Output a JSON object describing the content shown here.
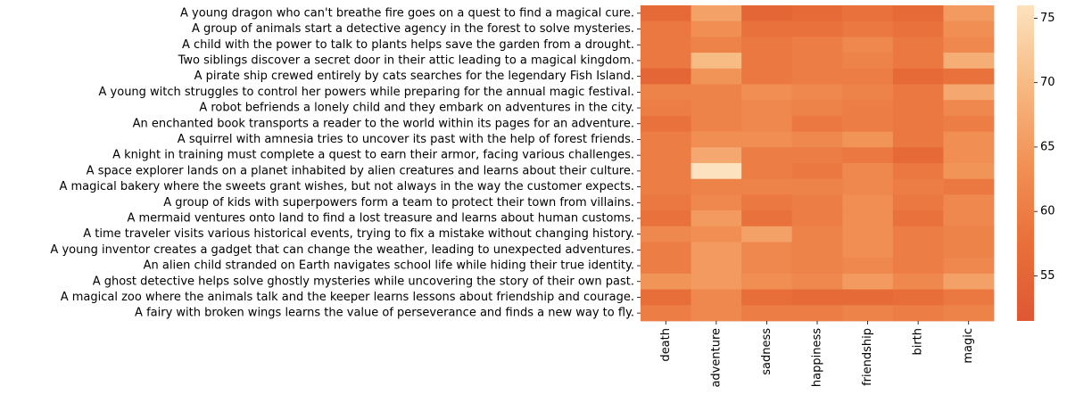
{
  "chart_data": {
    "type": "heatmap",
    "title": "",
    "xlabel": "",
    "ylabel": "",
    "columns": [
      "death",
      "adventure",
      "sadness",
      "happiness",
      "friendship",
      "birth",
      "magic"
    ],
    "rows": [
      "A young dragon who can't breathe fire goes on a quest to find a magical cure.",
      "A group of animals start a detective agency in the forest to solve mysteries.",
      "A child with the power to talk to plants helps save the garden from a drought.",
      "Two siblings discover a secret door in their attic leading to a magical kingdom.",
      "A pirate ship crewed entirely by cats searches for the legendary Fish Island.",
      "A young witch struggles to control her powers while preparing for the annual magic festival.",
      "A robot befriends a lonely child and they embark on adventures in the city.",
      "An enchanted book transports a reader to the world within its pages for an adventure.",
      "A squirrel with amnesia tries to uncover its past with the help of forest friends.",
      "A knight in training must complete a quest to earn their armor, facing various challenges.",
      "A space explorer lands on a planet inhabited by alien creatures and learns about their culture.",
      "A magical bakery where the sweets grant wishes, but not always in the way the customer expects.",
      "A group of kids with superpowers form a team to protect their town from villains.",
      "A mermaid ventures onto land to find a lost treasure and learns about human customs.",
      "A time traveler visits various historical events, trying to fix a mistake without changing history.",
      "A young inventor creates a gadget that can change the weather, leading to unexpected adventures.",
      "An alien child stranded on Earth navigates school life while hiding their true identity.",
      "A ghost detective helps solve ghostly mysteries while uncovering the story of their own past.",
      "A magical zoo where the animals talk and the keeper learns lessons about friendship and courage.",
      "A fairy with broken wings learns the value of perseverance and finds a new way to fly."
    ],
    "values": [
      [
        56,
        66,
        55,
        56,
        58,
        56,
        65
      ],
      [
        59,
        63,
        58,
        58,
        59,
        58,
        63
      ],
      [
        59,
        61,
        59,
        60,
        62,
        59,
        62
      ],
      [
        59,
        70,
        59,
        60,
        61,
        59,
        68
      ],
      [
        55,
        64,
        59,
        60,
        60,
        56,
        58
      ],
      [
        61,
        61,
        63,
        62,
        61,
        59,
        67
      ],
      [
        60,
        61,
        62,
        61,
        60,
        59,
        62
      ],
      [
        58,
        61,
        62,
        59,
        60,
        59,
        60
      ],
      [
        60,
        63,
        63,
        62,
        64,
        59,
        63
      ],
      [
        60,
        67,
        60,
        60,
        59,
        56,
        63
      ],
      [
        60,
        76,
        60,
        59,
        62,
        59,
        64
      ],
      [
        60,
        61,
        61,
        61,
        62,
        60,
        59
      ],
      [
        59,
        62,
        59,
        60,
        63,
        59,
        62
      ],
      [
        58,
        65,
        58,
        60,
        63,
        58,
        62
      ],
      [
        62,
        63,
        66,
        61,
        63,
        60,
        61
      ],
      [
        60,
        65,
        62,
        61,
        63,
        60,
        61
      ],
      [
        60,
        65,
        62,
        61,
        62,
        60,
        62
      ],
      [
        64,
        65,
        63,
        62,
        65,
        62,
        66
      ],
      [
        57,
        62,
        57,
        56,
        56,
        57,
        59
      ],
      [
        60,
        62,
        60,
        60,
        61,
        60,
        61
      ]
    ],
    "colorbar": {
      "min": 51.5,
      "max": 76,
      "ticks": [
        55,
        60,
        65,
        70,
        75
      ],
      "colormap": "sequential orange (dark orange low → pale peach high)"
    },
    "grid": false
  }
}
